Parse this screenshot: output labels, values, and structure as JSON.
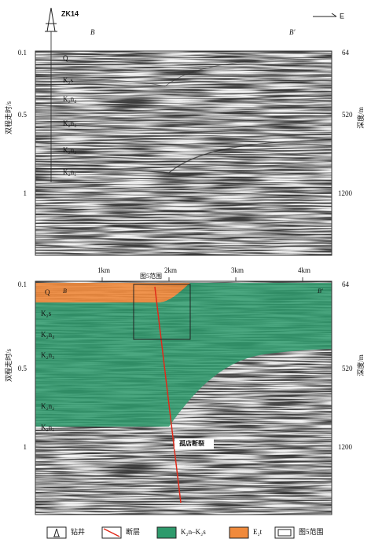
{
  "top_panel": {
    "well": "ZK14",
    "direction": "E",
    "start": "B",
    "end": "B′",
    "left_axis": {
      "label": "双程走时/s",
      "ticks": [
        "0.1",
        "0.5",
        "1"
      ]
    },
    "right_axis": {
      "label": "深度/m",
      "ticks": [
        "64",
        "520",
        "1200"
      ]
    },
    "layers": [
      "Q",
      "K₂s",
      "K₂n₄",
      "K₂n₃",
      "K₂n₂",
      "K₂n₁"
    ]
  },
  "bottom_panel": {
    "distance_ticks": [
      "1km",
      "2km",
      "3km",
      "4km"
    ],
    "start": "B",
    "end": "B′",
    "inset": "图5范围",
    "fault": "孤店断裂",
    "left_axis": {
      "label": "双程走时/s",
      "ticks": [
        "0.1",
        "0.5",
        "1"
      ]
    },
    "right_axis": {
      "label": "深度/m",
      "ticks": [
        "64",
        "520",
        "1200"
      ]
    },
    "layers": [
      "Q",
      "K₂s",
      "K₂n₄",
      "K₂n₃",
      "K₂n₂",
      "K₂n₁"
    ]
  },
  "legend": [
    "钻井",
    "断层",
    "K₂n–K₂s",
    "E₂t",
    "图5范围"
  ]
}
